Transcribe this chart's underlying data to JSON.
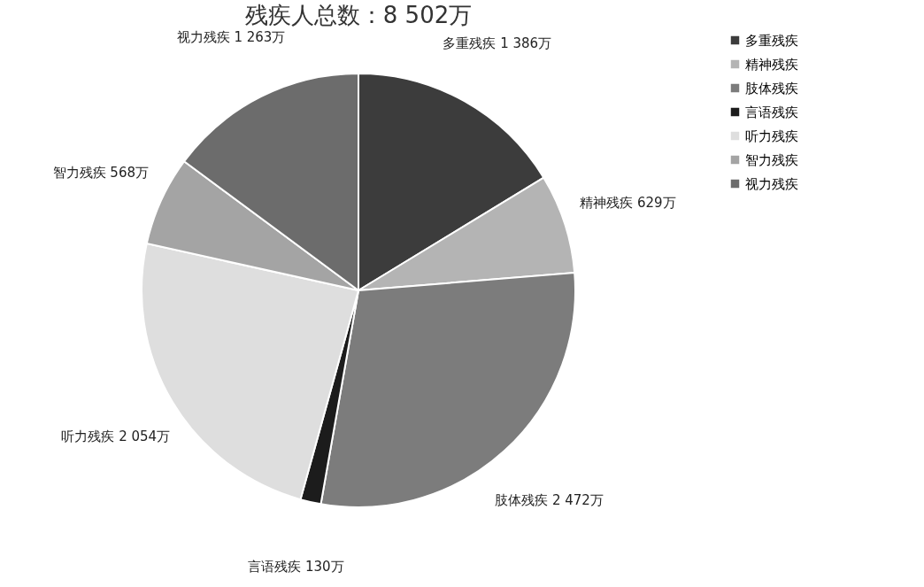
{
  "chart_data": {
    "type": "pie",
    "title": "残疾人总数：8 502万",
    "categories": [
      "多重残疾",
      "精神残疾",
      "肢体残疾",
      "言语残疾",
      "听力残疾",
      "智力残疾",
      "视力残疾"
    ],
    "values": [
      1386,
      629,
      2472,
      130,
      2054,
      568,
      1263
    ],
    "value_labels": [
      "1 386万",
      "629万",
      "2 472万",
      "130万",
      "2 054万",
      "568万",
      "1 263万"
    ],
    "colors": [
      "#3c3c3c",
      "#b4b4b4",
      "#7c7c7c",
      "#1c1c1c",
      "#dedede",
      "#a4a4a4",
      "#6c6c6c"
    ],
    "legend": "right"
  }
}
